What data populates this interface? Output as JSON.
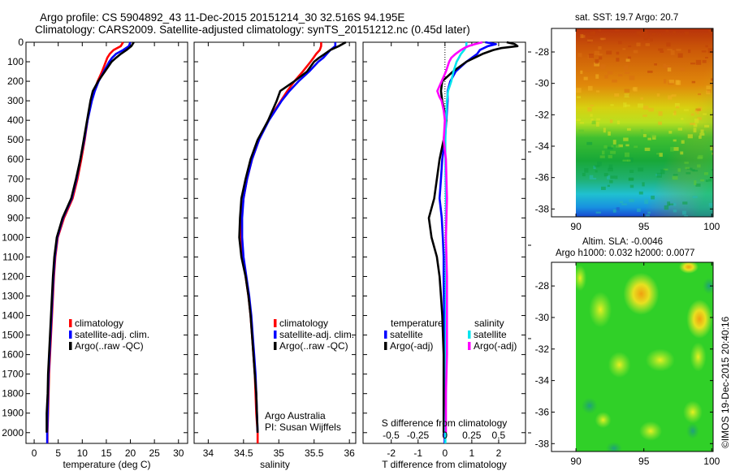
{
  "header": {
    "title_line1": "Argo profile: CS 5904892_43 11-Dec-2015 20151214_30 32.516S 94.195E",
    "title_line2": "Climatology: CARS2009. Satellite-adjusted climatology: synTS_20151212.nc (0.45d later)"
  },
  "copyright": "©IMOS 19-Dec-2015 20:40:16",
  "colors": {
    "climatology": "#ff0000",
    "satellite": "#0000ff",
    "argo": "#000000",
    "salinity_satellite": "#00e5ee",
    "salinity_argo": "#ff00ff"
  },
  "chart_data": [
    {
      "type": "line",
      "id": "temperature-profile",
      "title": "",
      "xlabel": "temperature (deg C)",
      "ylabel": "",
      "xlim": [
        -1.7,
        31.9
      ],
      "ylim": [
        2055,
        0
      ],
      "xticks": [
        0,
        5,
        10,
        15,
        20,
        25,
        30
      ],
      "yticks": [
        0,
        100,
        200,
        300,
        400,
        500,
        600,
        700,
        800,
        900,
        1000,
        1100,
        1200,
        1300,
        1400,
        1500,
        1600,
        1700,
        1800,
        1900,
        2000
      ],
      "grid": false,
      "legend": {
        "placement": "center-right",
        "entries": [
          "climatology",
          "satellite-adj. clim.",
          "Argo(..raw -QC)"
        ]
      },
      "series": [
        {
          "name": "climatology",
          "color": "#ff0000",
          "depth": [
            0,
            20,
            40,
            60,
            80,
            100,
            150,
            200,
            250,
            300,
            400,
            500,
            600,
            700,
            800,
            900,
            1000,
            1100,
            1200,
            1300,
            1400,
            1500,
            1600,
            1700,
            1800,
            1900,
            2000,
            2055
          ],
          "values": [
            18.5,
            18.0,
            16.5,
            15.7,
            15.2,
            14.9,
            14.1,
            13.2,
            12.5,
            11.9,
            11.1,
            10.5,
            9.8,
            9.0,
            8.0,
            6.2,
            4.9,
            4.4,
            4.1,
            3.9,
            3.7,
            3.5,
            3.3,
            3.1,
            3.0,
            2.9,
            2.75,
            2.75
          ]
        },
        {
          "name": "satellite-adj. clim.",
          "color": "#0000ff",
          "depth": [
            0,
            20,
            40,
            60,
            80,
            100,
            150,
            200,
            250,
            300,
            400,
            500,
            600,
            700,
            800,
            900,
            1000,
            1100,
            1200,
            1300,
            1400,
            1500,
            1600,
            1700,
            1800,
            1900,
            2000,
            2055
          ],
          "values": [
            20.0,
            19.7,
            18.5,
            17.0,
            16.2,
            15.6,
            14.5,
            13.4,
            12.6,
            12.0,
            11.1,
            10.4,
            9.6,
            8.8,
            7.8,
            6.0,
            4.8,
            4.3,
            4.0,
            3.8,
            3.6,
            3.4,
            3.2,
            3.0,
            2.9,
            2.8,
            2.7,
            2.7
          ]
        },
        {
          "name": "Argo(..raw -QC)",
          "color": "#000000",
          "depth": [
            0,
            20,
            40,
            60,
            80,
            100,
            150,
            200,
            250,
            300,
            400,
            500,
            600,
            700,
            800,
            900,
            1000,
            1100,
            1200,
            1300,
            1400,
            1500,
            1600,
            1700,
            1800,
            1900,
            2000
          ],
          "values": [
            20.7,
            20.2,
            19.2,
            18.0,
            17.0,
            16.1,
            14.7,
            13.3,
            12.2,
            11.7,
            11.0,
            10.3,
            9.6,
            8.7,
            7.7,
            5.9,
            4.7,
            4.2,
            3.9,
            3.7,
            3.5,
            3.3,
            3.1,
            2.9,
            2.8,
            2.6,
            2.6
          ]
        }
      ]
    },
    {
      "type": "line",
      "id": "salinity-profile",
      "title": "",
      "xlabel": "salinity",
      "ylabel": "",
      "xlim": [
        33.8,
        36.09
      ],
      "ylim": [
        2055,
        0
      ],
      "xticks": [
        34,
        34.5,
        35,
        35.5,
        36
      ],
      "grid": false,
      "legend": {
        "placement": "center-right",
        "entries": [
          "climatology",
          "satellite-adj. clim.",
          "Argo(..raw -QC)"
        ]
      },
      "annotations": [
        "Argo Australia",
        "PI: Susan Wijffels"
      ],
      "series": [
        {
          "name": "climatology",
          "color": "#ff0000",
          "depth": [
            0,
            20,
            40,
            60,
            80,
            100,
            150,
            200,
            250,
            300,
            400,
            500,
            600,
            700,
            800,
            900,
            1000,
            1100,
            1200,
            1300,
            1400,
            1500,
            1600,
            1700,
            1800,
            1900,
            2000,
            2055
          ],
          "values": [
            35.6,
            35.6,
            35.58,
            35.53,
            35.49,
            35.45,
            35.34,
            35.22,
            35.12,
            35.03,
            34.85,
            34.72,
            34.62,
            34.55,
            34.5,
            34.47,
            34.47,
            34.49,
            34.53,
            34.57,
            34.6,
            34.62,
            34.64,
            34.66,
            34.67,
            34.68,
            34.7,
            34.7
          ]
        },
        {
          "name": "satellite-adj. clim.",
          "color": "#0000ff",
          "depth": [
            0,
            20,
            40,
            60,
            80,
            100,
            150,
            200,
            250,
            300,
            400,
            500,
            600,
            700,
            800,
            900,
            1000,
            1100,
            1200,
            1300,
            1400,
            1500,
            1600,
            1700,
            1800,
            1900,
            2000
          ],
          "values": [
            35.8,
            35.8,
            35.73,
            35.68,
            35.63,
            35.56,
            35.43,
            35.28,
            35.15,
            35.04,
            34.86,
            34.72,
            34.62,
            34.55,
            34.5,
            34.48,
            34.48,
            34.5,
            34.54,
            34.58,
            34.61,
            34.63,
            34.65,
            34.67,
            34.68,
            34.69,
            34.7
          ]
        },
        {
          "name": "Argo(..raw -QC)",
          "color": "#000000",
          "depth": [
            0,
            20,
            40,
            60,
            80,
            100,
            150,
            200,
            250,
            300,
            400,
            500,
            600,
            700,
            800,
            900,
            1000,
            1100,
            1200,
            1300,
            1400,
            1500,
            1600,
            1700,
            1800,
            1900,
            2000
          ],
          "values": [
            35.95,
            35.85,
            35.73,
            35.65,
            35.57,
            35.5,
            35.4,
            35.22,
            35.02,
            34.97,
            34.85,
            34.7,
            34.6,
            34.53,
            34.47,
            34.45,
            34.44,
            34.47,
            34.53,
            34.57,
            34.6,
            34.62,
            34.64,
            34.66,
            34.68,
            34.69,
            34.7
          ]
        }
      ]
    },
    {
      "type": "line",
      "id": "difference-profile",
      "title": "",
      "xlabel": "T difference from climatology",
      "xlabel_top": "S difference from climatology",
      "xlim": [
        -3.05,
        3.0
      ],
      "ylim": [
        2055,
        0
      ],
      "xticks": [
        -2,
        -1,
        0,
        1,
        2
      ],
      "s_xlim": [
        -0.76,
        0.75
      ],
      "s_xticks": [
        -0.5,
        -0.25,
        0,
        0.25,
        0.5
      ],
      "s_xtick_labels": [
        "-0.5",
        "-0.25",
        "0",
        "0.25",
        "0.5"
      ],
      "zero_line": "dotted",
      "grid": false,
      "legend": {
        "placement": "lower-center",
        "groups": [
          {
            "title": "temperature",
            "entries": [
              "satellite",
              "Argo(-adj)"
            ]
          },
          {
            "title": "salinity",
            "entries": [
              "satellite",
              "Argo(-adj)"
            ]
          }
        ]
      },
      "series": [
        {
          "name": "temperature satellite",
          "axis": "T",
          "color": "#0000ff",
          "depth": [
            0,
            10,
            20,
            40,
            60,
            80,
            100,
            150,
            200,
            250,
            300,
            400,
            500,
            600,
            700,
            800,
            900,
            1000,
            1100,
            1200,
            1400,
            1600,
            1800,
            2000,
            2055
          ],
          "values": [
            1.5,
            1.9,
            1.6,
            1.3,
            1.2,
            1.0,
            0.8,
            0.4,
            0.2,
            0.1,
            0.1,
            0.05,
            0.0,
            -0.1,
            -0.15,
            -0.2,
            -0.12,
            -0.08,
            -0.05,
            -0.05,
            -0.03,
            -0.02,
            -0.02,
            -0.01,
            -0.01
          ]
        },
        {
          "name": "temperature Argo(-adj)",
          "axis": "T",
          "color": "#000000",
          "depth": [
            0,
            10,
            20,
            30,
            40,
            60,
            80,
            100,
            150,
            200,
            250,
            300,
            400,
            500,
            600,
            700,
            800,
            900,
            1000,
            1100,
            1200,
            1300,
            1400,
            1600,
            1800,
            2000
          ],
          "values": [
            2.3,
            2.6,
            2.7,
            2.1,
            1.8,
            1.4,
            1.1,
            0.8,
            0.3,
            -0.1,
            -0.15,
            -0.1,
            0.05,
            -0.05,
            -0.2,
            -0.3,
            -0.4,
            -0.6,
            -0.5,
            -0.3,
            -0.2,
            -0.15,
            -0.1,
            -0.05,
            -0.05,
            -0.05
          ]
        },
        {
          "name": "salinity satellite",
          "axis": "S",
          "color": "#00e5ee",
          "depth": [
            0,
            20,
            40,
            60,
            80,
            100,
            150,
            200,
            250,
            300,
            400,
            500,
            600,
            800,
            1000,
            1200,
            1400,
            1600,
            1800,
            2000,
            2055
          ],
          "values": [
            0.2,
            0.2,
            0.18,
            0.15,
            0.13,
            0.11,
            0.08,
            0.06,
            0.03,
            0.02,
            0.01,
            0.005,
            0.005,
            0.01,
            0.01,
            0.01,
            0.01,
            0.01,
            0.01,
            0.005,
            0.005
          ]
        },
        {
          "name": "salinity Argo(-adj)",
          "axis": "S",
          "color": "#ff00ff",
          "depth": [
            0,
            10,
            20,
            30,
            40,
            60,
            80,
            100,
            150,
            200,
            250,
            280,
            300,
            350,
            400,
            500,
            600,
            800,
            1000,
            1200,
            1400,
            1600,
            1800,
            2000
          ],
          "values": [
            0.35,
            0.28,
            0.22,
            0.18,
            0.15,
            0.1,
            0.06,
            0.04,
            0.01,
            -0.03,
            -0.07,
            -0.05,
            -0.03,
            -0.01,
            0.0,
            -0.01,
            0.01,
            0.02,
            0.01,
            0.02,
            0.02,
            0.02,
            0.01,
            0.01
          ]
        }
      ]
    },
    {
      "type": "heatmap",
      "id": "sst-map",
      "title": "sat. SST: 19.7 Argo: 20.7",
      "xlim": [
        88.2,
        100.1
      ],
      "ylim": [
        -38.5,
        -26.5
      ],
      "xticks": [
        90,
        95,
        100
      ],
      "yticks": [
        -28,
        -30,
        -32,
        -34,
        -36,
        -38
      ],
      "data_lon_range": [
        90,
        100
      ],
      "colormap": "jet",
      "description": "SST field: warm (orange/red) in north, grading to green then blue in south"
    },
    {
      "type": "heatmap",
      "id": "sla-map",
      "title": "Altim. SLA: -0.0046",
      "subtitle": "Argo h1000: 0.032 h2000: 0.0077",
      "xlim": [
        88.2,
        100.1
      ],
      "ylim": [
        -38.5,
        -26.5
      ],
      "xticks": [
        90,
        95,
        100
      ],
      "yticks": [
        -28,
        -30,
        -32,
        -34,
        -36,
        -38
      ],
      "data_lon_range": [
        90,
        100
      ],
      "colormap": "jet",
      "description": "Sea level anomaly field: mostly green with yellow/orange blobs near 94.5E -28.5S and 99E -30S"
    }
  ]
}
